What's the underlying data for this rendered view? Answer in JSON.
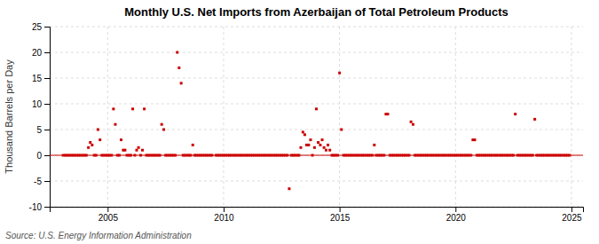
{
  "chart_data": {
    "type": "scatter",
    "title": "Monthly U.S. Net Imports from Azerbaijan of Total Petroleum Products",
    "y_label": "Thousand Barrels per Day",
    "annotations": [
      "Source: U.S. Energy Information Administration"
    ],
    "color": "#cc0000",
    "marker": "square",
    "hlines": [
      {
        "value": 0,
        "color": "#cc0000"
      }
    ],
    "grid": true,
    "xlim": [
      2002.5,
      2025.5
    ],
    "ylim": [
      -10,
      25
    ],
    "xticks": [
      2005,
      2010,
      2015,
      2020,
      2025
    ],
    "yticks": [
      -10,
      -5,
      0,
      5,
      10,
      15,
      20,
      25
    ],
    "x": [
      2003.08,
      2003.17,
      2003.25,
      2003.33,
      2003.42,
      2003.5,
      2003.58,
      2003.67,
      2003.75,
      2003.83,
      2003.92,
      2004.0,
      2004.08,
      2004.17,
      2004.25,
      2004.33,
      2004.42,
      2004.5,
      2004.58,
      2004.67,
      2004.75,
      2004.83,
      2004.92,
      2005.0,
      2005.08,
      2005.17,
      2005.25,
      2005.33,
      2005.42,
      2005.5,
      2005.58,
      2005.67,
      2005.75,
      2005.83,
      2005.92,
      2006.0,
      2006.08,
      2006.17,
      2006.25,
      2006.33,
      2006.42,
      2006.5,
      2006.58,
      2006.67,
      2006.75,
      2006.83,
      2006.92,
      2007.0,
      2007.08,
      2007.17,
      2007.25,
      2007.33,
      2007.42,
      2007.5,
      2007.58,
      2007.67,
      2007.75,
      2007.83,
      2007.92,
      2008.0,
      2008.08,
      2008.17,
      2008.25,
      2008.33,
      2008.42,
      2008.5,
      2008.58,
      2008.67,
      2008.75,
      2008.83,
      2008.92,
      2009.0,
      2009.08,
      2009.17,
      2009.25,
      2009.33,
      2009.42,
      2009.5,
      2009.67,
      2009.75,
      2009.83,
      2009.92,
      2010.0,
      2010.08,
      2010.17,
      2010.25,
      2010.33,
      2010.42,
      2010.5,
      2010.58,
      2010.67,
      2010.75,
      2010.83,
      2010.92,
      2011.0,
      2011.08,
      2011.17,
      2011.25,
      2011.33,
      2011.42,
      2011.5,
      2011.58,
      2011.67,
      2011.75,
      2011.83,
      2011.92,
      2012.0,
      2012.08,
      2012.17,
      2012.25,
      2012.33,
      2012.42,
      2012.5,
      2012.58,
      2012.67,
      2012.75,
      2012.83,
      2012.92,
      2013.0,
      2013.08,
      2013.17,
      2013.25,
      2013.33,
      2013.42,
      2013.5,
      2013.58,
      2013.67,
      2013.75,
      2013.83,
      2013.92,
      2014.0,
      2014.08,
      2014.17,
      2014.25,
      2014.33,
      2014.42,
      2014.5,
      2014.58,
      2014.67,
      2014.75,
      2014.83,
      2014.92,
      2015.0,
      2015.08,
      2015.17,
      2015.25,
      2015.33,
      2015.42,
      2015.5,
      2015.58,
      2015.67,
      2015.75,
      2015.83,
      2015.92,
      2016.0,
      2016.08,
      2016.17,
      2016.25,
      2016.33,
      2016.42,
      2016.5,
      2016.58,
      2016.67,
      2016.75,
      2016.83,
      2016.92,
      2017.0,
      2017.08,
      2017.17,
      2017.25,
      2017.33,
      2017.42,
      2017.5,
      2017.58,
      2017.67,
      2017.75,
      2017.83,
      2017.92,
      2018.0,
      2018.08,
      2018.17,
      2018.25,
      2018.33,
      2018.42,
      2018.5,
      2018.58,
      2018.67,
      2018.75,
      2018.83,
      2018.92,
      2019.0,
      2019.08,
      2019.17,
      2019.25,
      2019.33,
      2019.42,
      2019.5,
      2019.58,
      2019.67,
      2019.75,
      2019.83,
      2019.92,
      2020.0,
      2020.08,
      2020.17,
      2020.25,
      2020.33,
      2020.42,
      2020.5,
      2020.58,
      2020.67,
      2020.75,
      2020.83,
      2020.92,
      2021.0,
      2021.08,
      2021.17,
      2021.25,
      2021.33,
      2021.42,
      2021.5,
      2021.58,
      2021.67,
      2021.75,
      2021.83,
      2021.92,
      2022.0,
      2022.08,
      2022.17,
      2022.25,
      2022.33,
      2022.42,
      2022.5,
      2022.58,
      2022.67,
      2022.75,
      2022.83,
      2022.92,
      2023.0,
      2023.08,
      2023.17,
      2023.25,
      2023.33,
      2023.42,
      2023.5,
      2023.58,
      2023.67,
      2023.75,
      2023.83,
      2023.92,
      2024.0,
      2024.08,
      2024.17,
      2024.25,
      2024.33,
      2024.42,
      2024.5,
      2024.58,
      2024.67,
      2024.75,
      2024.83,
      2024.92
    ],
    "values": [
      0,
      0,
      0,
      0,
      0,
      0,
      0,
      0,
      0,
      0,
      0,
      0,
      0,
      1.5,
      2.5,
      2,
      0,
      0,
      5,
      3,
      0,
      0,
      0,
      0,
      0,
      0,
      9,
      6,
      0,
      0,
      3,
      1,
      1,
      0,
      0,
      0,
      9,
      0,
      1,
      1.5,
      0,
      1,
      9,
      0,
      0,
      0,
      0,
      0,
      0,
      0,
      0,
      6,
      5,
      0,
      0,
      0,
      0,
      0,
      0,
      20,
      17,
      14,
      0,
      0,
      0,
      0,
      0,
      2,
      0,
      0,
      0,
      0,
      0,
      0,
      0,
      0,
      0,
      0,
      0,
      0,
      0,
      0,
      0,
      0,
      0,
      0,
      0,
      0,
      0,
      0,
      0,
      0,
      0,
      0,
      0,
      0,
      0,
      0,
      0,
      0,
      0,
      0,
      0,
      0,
      0,
      0,
      0,
      0,
      0,
      0,
      0,
      0,
      0,
      0,
      0,
      0,
      -6.5,
      0,
      0,
      0,
      0,
      0,
      1.5,
      4.5,
      4,
      2,
      2,
      3,
      0,
      1.5,
      9,
      2.5,
      2,
      3,
      1.5,
      1,
      2,
      1,
      0,
      0,
      0,
      0,
      16,
      5,
      0,
      0,
      0,
      0,
      0,
      0,
      0,
      0,
      0,
      0,
      0,
      0,
      0,
      0,
      0,
      0,
      2,
      0,
      0,
      0,
      0,
      0,
      8,
      8,
      0,
      0,
      0,
      0,
      0,
      0,
      0,
      0,
      0,
      0,
      0,
      6.5,
      6,
      0,
      0,
      0,
      0,
      0,
      0,
      0,
      0,
      0,
      0,
      0,
      0,
      0,
      0,
      0,
      0,
      0,
      0,
      0,
      0,
      0,
      0,
      0,
      0,
      0,
      0,
      0,
      0,
      0,
      0,
      3,
      3,
      0,
      0,
      0,
      0,
      0,
      0,
      0,
      0,
      0,
      0,
      0,
      0,
      0,
      0,
      0,
      0,
      0,
      0,
      0,
      0,
      8,
      0,
      0,
      0,
      0,
      0,
      0,
      0,
      0,
      0,
      7,
      0,
      0,
      0,
      0,
      0,
      0,
      0,
      0,
      0,
      0,
      0,
      0,
      0,
      0,
      0,
      0,
      0,
      0
    ]
  }
}
